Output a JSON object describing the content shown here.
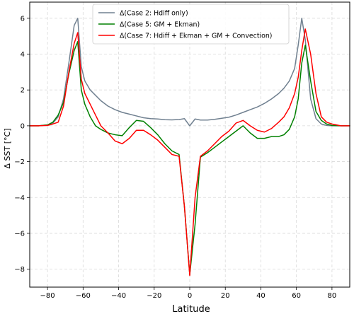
{
  "chart_data": {
    "type": "line",
    "xlabel": "Latitude",
    "ylabel": "Δ SST [$^\\circ C$]",
    "ylabel_display": "Δ SST [°C]",
    "xlim": [
      -90,
      90
    ],
    "ylim": [
      -9,
      6.9
    ],
    "xticks": [
      -80,
      -60,
      -40,
      -20,
      0,
      20,
      40,
      60,
      80
    ],
    "xtick_labels": [
      "−80",
      "−60",
      "−40",
      "−20",
      "0",
      "20",
      "40",
      "60",
      "80"
    ],
    "yticks": [
      -8,
      -6,
      -4,
      -2,
      0,
      2,
      4,
      6
    ],
    "ytick_labels": [
      "−8",
      "−6",
      "−4",
      "−2",
      "0",
      "2",
      "4",
      "6"
    ],
    "grid": true,
    "legend_position": "top-center",
    "series": [
      {
        "name": "Δ(Case 2: Hdiff only)",
        "color": "#708090",
        "x": [
          -90,
          -85,
          -80,
          -77,
          -74,
          -71,
          -68,
          -65,
          -63,
          -61,
          -59,
          -56,
          -53,
          -50,
          -46,
          -42,
          -38,
          -34,
          -30,
          -26,
          -22,
          -18,
          -14,
          -10,
          -6,
          -3,
          0,
          3,
          6,
          10,
          14,
          18,
          22,
          26,
          30,
          34,
          38,
          42,
          46,
          50,
          53,
          56,
          59,
          61,
          63,
          65,
          68,
          71,
          74,
          77,
          80,
          85,
          90
        ],
        "y": [
          0,
          0,
          0.05,
          0.15,
          0.5,
          1.5,
          3.5,
          5.6,
          6.0,
          3.3,
          2.5,
          2.0,
          1.7,
          1.4,
          1.1,
          0.9,
          0.75,
          0.65,
          0.55,
          0.45,
          0.4,
          0.38,
          0.34,
          0.33,
          0.35,
          0.4,
          0.0,
          0.38,
          0.32,
          0.32,
          0.36,
          0.42,
          0.48,
          0.6,
          0.75,
          0.9,
          1.05,
          1.25,
          1.5,
          1.8,
          2.1,
          2.5,
          3.2,
          4.5,
          6.0,
          4.8,
          1.5,
          0.4,
          0.1,
          0.02,
          0,
          0,
          0
        ]
      },
      {
        "name": "Δ(Case 5: GM + Ekman)",
        "color": "#008000",
        "x": [
          -90,
          -85,
          -80,
          -77,
          -74,
          -71,
          -68,
          -65,
          -63,
          -61,
          -59,
          -56,
          -53,
          -50,
          -46,
          -42,
          -38,
          -34,
          -30,
          -26,
          -22,
          -18,
          -14,
          -10,
          -6,
          -3,
          0,
          3,
          6,
          10,
          14,
          18,
          22,
          26,
          30,
          34,
          38,
          42,
          46,
          50,
          53,
          56,
          59,
          61,
          63,
          65,
          68,
          71,
          74,
          77,
          80,
          85,
          90
        ],
        "y": [
          0,
          0,
          0.05,
          0.2,
          0.6,
          1.3,
          2.9,
          4.2,
          4.7,
          2.0,
          1.2,
          0.5,
          0.0,
          -0.2,
          -0.4,
          -0.5,
          -0.55,
          -0.1,
          0.3,
          0.25,
          -0.1,
          -0.5,
          -1.0,
          -1.4,
          -1.6,
          -4.5,
          -8.3,
          -5.5,
          -1.75,
          -1.5,
          -1.2,
          -0.9,
          -0.6,
          -0.3,
          0.0,
          -0.4,
          -0.7,
          -0.7,
          -0.6,
          -0.6,
          -0.5,
          -0.2,
          0.5,
          1.5,
          3.5,
          4.5,
          2.5,
          0.8,
          0.3,
          0.1,
          0.02,
          0,
          0
        ]
      },
      {
        "name": "Δ(Case 7: Hdiff + Ekman + GM + Convection)",
        "color": "#ff0000",
        "x": [
          -90,
          -85,
          -80,
          -77,
          -74,
          -71,
          -68,
          -65,
          -63,
          -61,
          -59,
          -56,
          -53,
          -50,
          -46,
          -42,
          -38,
          -34,
          -30,
          -26,
          -22,
          -18,
          -14,
          -10,
          -6,
          -3,
          0,
          3,
          6,
          10,
          14,
          18,
          22,
          26,
          30,
          34,
          38,
          42,
          46,
          50,
          53,
          56,
          59,
          61,
          63,
          65,
          68,
          71,
          74,
          77,
          80,
          85,
          90
        ],
        "y": [
          0,
          0,
          0.02,
          0.1,
          0.2,
          1.1,
          3.0,
          4.6,
          5.2,
          2.6,
          1.8,
          1.2,
          0.6,
          0.0,
          -0.4,
          -0.85,
          -1.0,
          -0.7,
          -0.25,
          -0.25,
          -0.5,
          -0.8,
          -1.2,
          -1.6,
          -1.7,
          -4.5,
          -8.35,
          -4.0,
          -1.7,
          -1.4,
          -1.0,
          -0.6,
          -0.3,
          0.15,
          0.3,
          0.0,
          -0.25,
          -0.35,
          -0.15,
          0.2,
          0.5,
          1.0,
          1.8,
          2.7,
          4.2,
          5.4,
          4.0,
          1.8,
          0.5,
          0.2,
          0.1,
          0,
          0
        ]
      }
    ]
  }
}
